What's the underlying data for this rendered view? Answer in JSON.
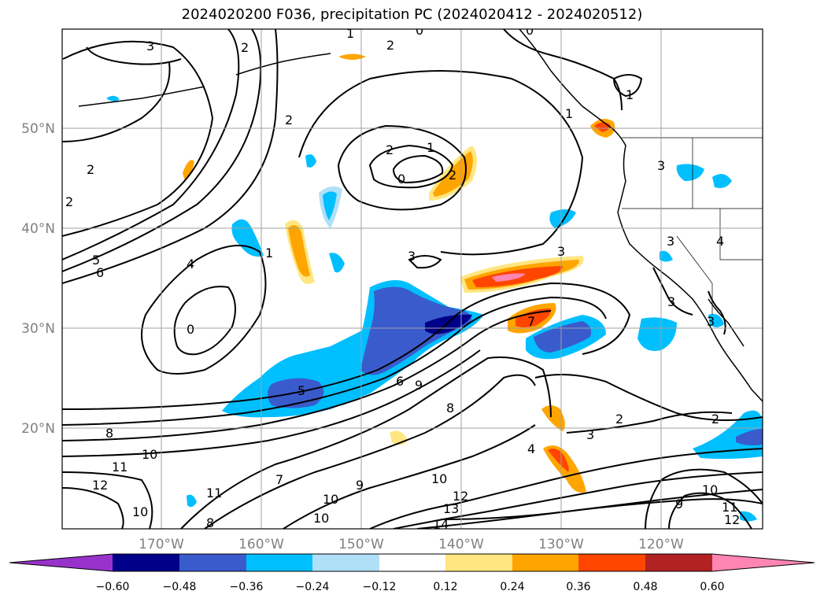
{
  "title": "2024020200 F036, precipitation PC (2024020412 - 2024020512)",
  "lat_labels": [
    "50°N",
    "40°N",
    "30°N",
    "20°N"
  ],
  "lon_labels": [
    "170°W",
    "160°W",
    "150°W",
    "140°W",
    "130°W",
    "120°W"
  ],
  "colorbar": {
    "tick_labels": [
      "−0.60",
      "−0.48",
      "−0.36",
      "−0.24",
      "−0.12",
      "0.12",
      "0.24",
      "0.36",
      "0.48",
      "0.60"
    ],
    "colors": [
      "#9932cc",
      "#00008b",
      "#3a5bcc",
      "#00bfff",
      "#b0e0f8",
      "#ffffff",
      "#ffe680",
      "#ffa500",
      "#ff4500",
      "#b22222",
      "#ff85b3"
    ]
  },
  "contour_labels": [
    "3",
    "2",
    "2",
    "0",
    "1",
    "2",
    "2",
    "1",
    "2",
    "0",
    "2",
    "1",
    "5",
    "6",
    "4",
    "0",
    "3",
    "2",
    "5",
    "6",
    "9",
    "8",
    "8",
    "10",
    "11",
    "12",
    "10",
    "11",
    "8",
    "7",
    "9",
    "10",
    "10",
    "12",
    "13",
    "14",
    "10",
    "2",
    "3",
    "4",
    "7",
    "3",
    "3",
    "2",
    "9",
    "10",
    "11",
    "12",
    "1",
    "3",
    "3",
    "4",
    "1",
    "3",
    "0"
  ],
  "colors": {
    "contour": "#000000",
    "grid": "#a0a0a0",
    "coast": "#000000"
  }
}
